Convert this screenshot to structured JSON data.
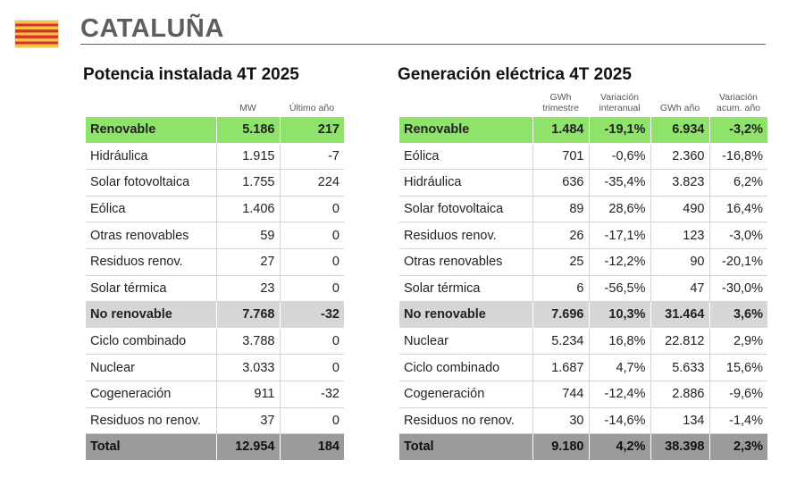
{
  "header": {
    "region": "CATALUÑA",
    "flag_icon": "catalonia-flag-icon"
  },
  "colors": {
    "accent_rule": "#c93a3a",
    "renewable_row": "#8fe36b",
    "non_renewable_row": "#d6d6d6",
    "total_row": "#9b9b9b"
  },
  "potencia": {
    "title": "Potencia instalada 4T 2025",
    "columns": [
      "",
      "MW",
      "Último año"
    ],
    "rows": [
      {
        "label": "Renovable",
        "mw": "5.186",
        "ultimo": "217",
        "kind": "renov"
      },
      {
        "label": "Hidráulica",
        "mw": "1.915",
        "ultimo": "-7",
        "kind": ""
      },
      {
        "label": "Solar fotovoltaica",
        "mw": "1.755",
        "ultimo": "224",
        "kind": ""
      },
      {
        "label": "Eólica",
        "mw": "1.406",
        "ultimo": "0",
        "kind": ""
      },
      {
        "label": "Otras renovables",
        "mw": "59",
        "ultimo": "0",
        "kind": ""
      },
      {
        "label": "Residuos renov.",
        "mw": "27",
        "ultimo": "0",
        "kind": ""
      },
      {
        "label": "Solar térmica",
        "mw": "23",
        "ultimo": "0",
        "kind": ""
      },
      {
        "label": "No renovable",
        "mw": "7.768",
        "ultimo": "-32",
        "kind": "norenov"
      },
      {
        "label": "Ciclo combinado",
        "mw": "3.788",
        "ultimo": "0",
        "kind": ""
      },
      {
        "label": "Nuclear",
        "mw": "3.033",
        "ultimo": "0",
        "kind": ""
      },
      {
        "label": "Cogeneración",
        "mw": "911",
        "ultimo": "-32",
        "kind": ""
      },
      {
        "label": "Residuos no renov.",
        "mw": "37",
        "ultimo": "0",
        "kind": ""
      },
      {
        "label": "Total",
        "mw": "12.954",
        "ultimo": "184",
        "kind": "total"
      }
    ]
  },
  "generacion": {
    "title": "Generación eléctrica 4T 2025",
    "columns": [
      "",
      "GWh trimestre",
      "Variación interanual",
      "GWh año",
      "Variación acum. año"
    ],
    "rows": [
      {
        "label": "Renovable",
        "gwh_trim": "1.484",
        "var_inter": "-19,1%",
        "gwh_ano": "6.934",
        "var_acum": "-3,2%",
        "kind": "renov"
      },
      {
        "label": "Eólica",
        "gwh_trim": "701",
        "var_inter": "-0,6%",
        "gwh_ano": "2.360",
        "var_acum": "-16,8%",
        "kind": ""
      },
      {
        "label": "Hidráulica",
        "gwh_trim": "636",
        "var_inter": "-35,4%",
        "gwh_ano": "3.823",
        "var_acum": "6,2%",
        "kind": ""
      },
      {
        "label": "Solar fotovoltaica",
        "gwh_trim": "89",
        "var_inter": "28,6%",
        "gwh_ano": "490",
        "var_acum": "16,4%",
        "kind": ""
      },
      {
        "label": "Residuos renov.",
        "gwh_trim": "26",
        "var_inter": "-17,1%",
        "gwh_ano": "123",
        "var_acum": "-3,0%",
        "kind": ""
      },
      {
        "label": "Otras renovables",
        "gwh_trim": "25",
        "var_inter": "-12,2%",
        "gwh_ano": "90",
        "var_acum": "-20,1%",
        "kind": ""
      },
      {
        "label": "Solar térmica",
        "gwh_trim": "6",
        "var_inter": "-56,5%",
        "gwh_ano": "47",
        "var_acum": "-30,0%",
        "kind": ""
      },
      {
        "label": "No renovable",
        "gwh_trim": "7.696",
        "var_inter": "10,3%",
        "gwh_ano": "31.464",
        "var_acum": "3,6%",
        "kind": "norenov"
      },
      {
        "label": "Nuclear",
        "gwh_trim": "5.234",
        "var_inter": "16,8%",
        "gwh_ano": "22.812",
        "var_acum": "2,9%",
        "kind": ""
      },
      {
        "label": "Ciclo combinado",
        "gwh_trim": "1.687",
        "var_inter": "4,7%",
        "gwh_ano": "5.633",
        "var_acum": "15,6%",
        "kind": ""
      },
      {
        "label": "Cogeneración",
        "gwh_trim": "744",
        "var_inter": "-12,4%",
        "gwh_ano": "2.886",
        "var_acum": "-9,6%",
        "kind": ""
      },
      {
        "label": "Residuos no renov.",
        "gwh_trim": "30",
        "var_inter": "-14,6%",
        "gwh_ano": "134",
        "var_acum": "-1,4%",
        "kind": ""
      },
      {
        "label": "Total",
        "gwh_trim": "9.180",
        "var_inter": "4,2%",
        "gwh_ano": "38.398",
        "var_acum": "2,3%",
        "kind": "total"
      }
    ]
  }
}
